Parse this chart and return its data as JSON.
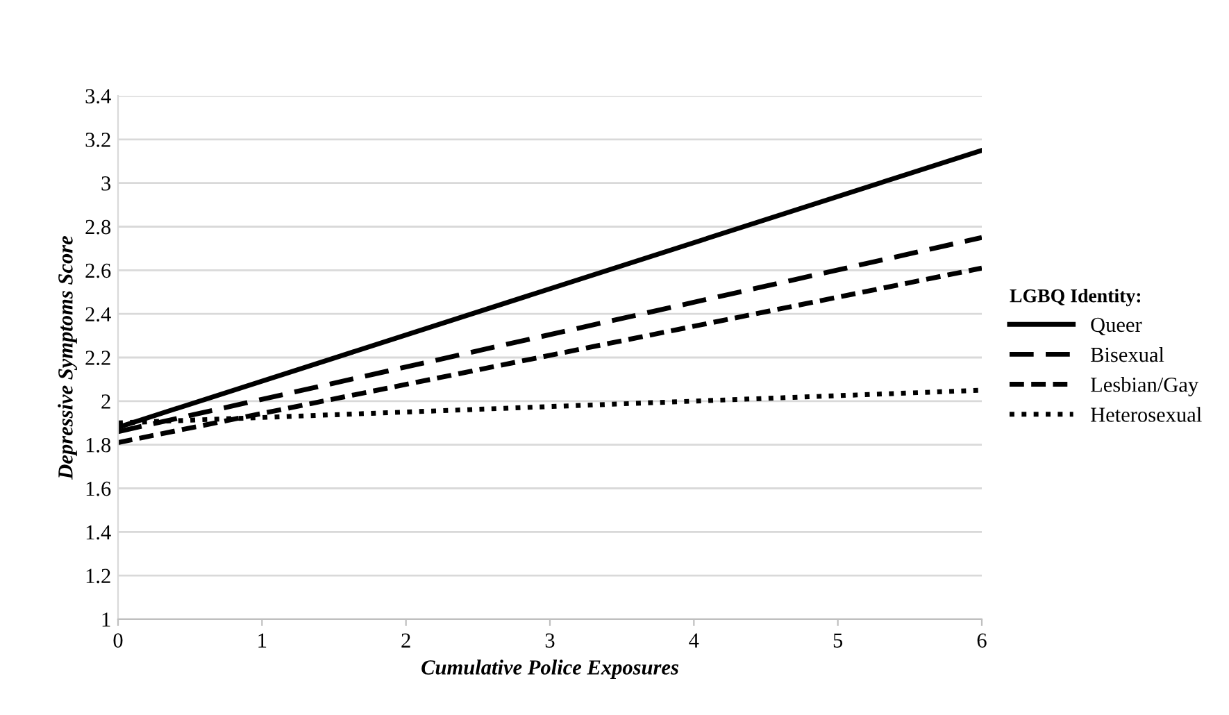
{
  "chart_data": {
    "type": "line",
    "xlabel": "Cumulative Police Exposures",
    "ylabel": "Depressive Symptoms Score",
    "legend_title": "LGBQ Identity:",
    "legend": "right",
    "grid": "y",
    "marker": "none",
    "x": [
      0,
      6
    ],
    "xlim": [
      0,
      6
    ],
    "xticks": [
      0,
      1,
      2,
      3,
      4,
      5,
      6
    ],
    "ylim": [
      1,
      3.4
    ],
    "yticks": [
      1,
      1.2,
      1.4,
      1.6,
      1.8,
      2,
      2.2,
      2.4,
      2.6,
      2.8,
      3,
      3.2,
      3.4
    ],
    "series": [
      {
        "name": "Queer",
        "color": "#000000",
        "line_style": "solid",
        "values": [
          1.88,
          3.15
        ]
      },
      {
        "name": "Bisexual",
        "color": "#000000",
        "line_style": "dashed",
        "values": [
          1.86,
          2.75
        ]
      },
      {
        "name": "Lesbian/Gay",
        "color": "#000000",
        "line_style": "dashed",
        "values": [
          1.81,
          2.61
        ]
      },
      {
        "name": "Heterosexual",
        "color": "#000000",
        "line_style": "dotted",
        "values": [
          1.9,
          2.05
        ]
      }
    ]
  }
}
